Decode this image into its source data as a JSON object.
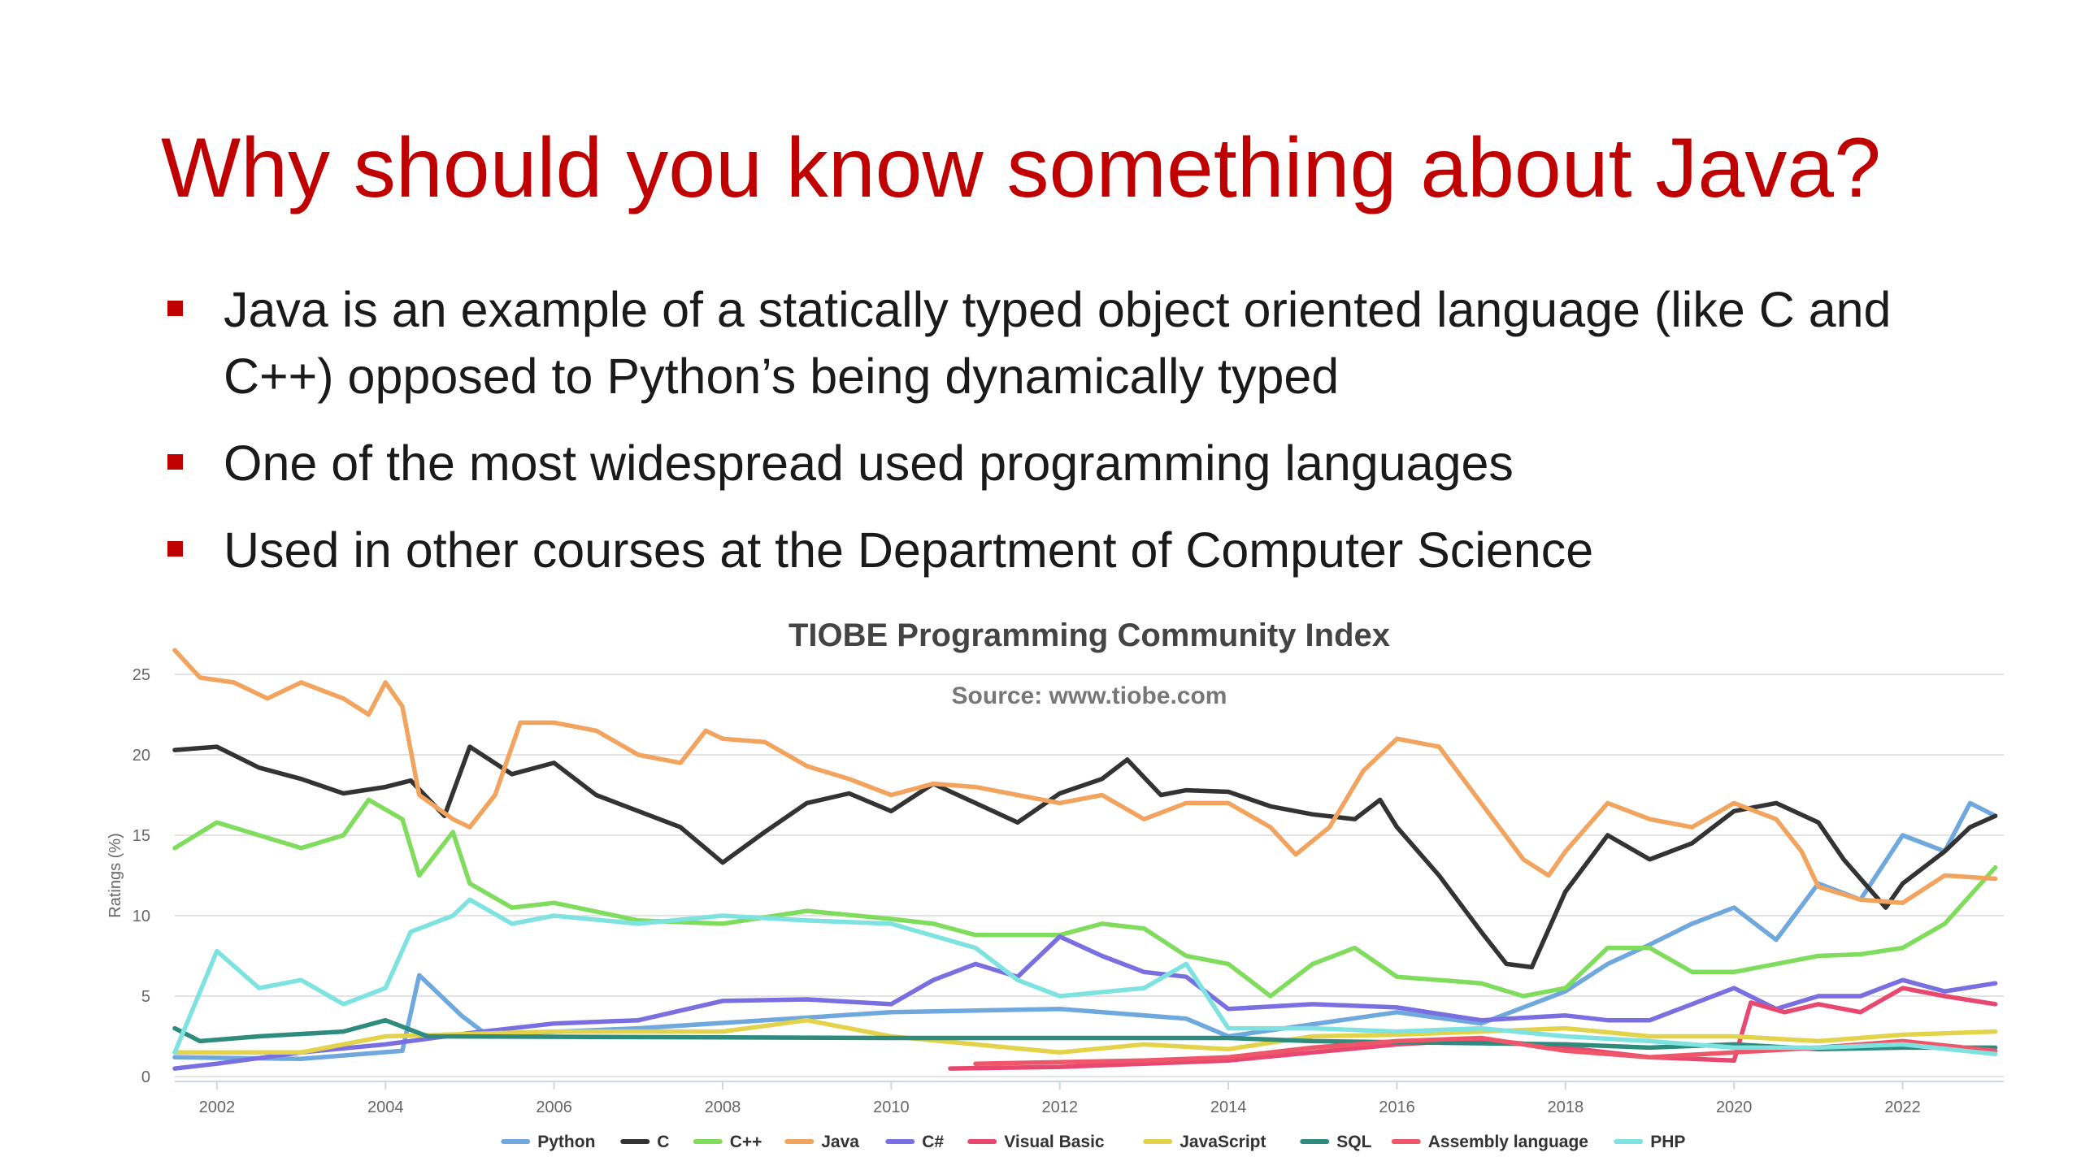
{
  "slide": {
    "title": "Why should you know something about Java?",
    "bullets": [
      "Java is an example of a statically typed object oriented language (like C and C++) opposed to Python’s being dynamically typed",
      "One of the most widespread used programming languages",
      "Used in other courses at the Department of Computer Science"
    ]
  },
  "colors": {
    "title": "#c00000",
    "bullet": "#c00000"
  },
  "chart_data": {
    "type": "line",
    "title": "TIOBE Programming Community Index",
    "subtitle": "Source: www.tiobe.com",
    "ylabel": "Ratings (%)",
    "xlabel": "",
    "xlim": [
      2001.5,
      2023.2
    ],
    "ylim": [
      0,
      25
    ],
    "x_ticks": [
      "2002",
      "2004",
      "2006",
      "2008",
      "2010",
      "2012",
      "2014",
      "2016",
      "2018",
      "2020",
      "2022"
    ],
    "y_ticks": [
      "0",
      "5",
      "10",
      "15",
      "20",
      "25"
    ],
    "grid": "horizontal",
    "legend_position": "bottom",
    "series": [
      {
        "name": "Python",
        "color": "#6fa8dc",
        "points": [
          [
            2001.5,
            1.2
          ],
          [
            2003,
            1.1
          ],
          [
            2004.2,
            1.6
          ],
          [
            2004.4,
            6.3
          ],
          [
            2004.9,
            3.8
          ],
          [
            2005.2,
            2.6
          ],
          [
            2007,
            3.0
          ],
          [
            2010,
            4.0
          ],
          [
            2012,
            4.2
          ],
          [
            2013.5,
            3.6
          ],
          [
            2014,
            2.5
          ],
          [
            2016,
            4.0
          ],
          [
            2017,
            3.3
          ],
          [
            2018,
            5.3
          ],
          [
            2018.5,
            7.0
          ],
          [
            2019,
            8.2
          ],
          [
            2019.5,
            9.5
          ],
          [
            2020,
            10.5
          ],
          [
            2020.5,
            8.5
          ],
          [
            2021,
            12.0
          ],
          [
            2021.5,
            11.0
          ],
          [
            2022,
            15.0
          ],
          [
            2022.5,
            14.0
          ],
          [
            2022.8,
            17.0
          ],
          [
            2023.1,
            16.2
          ]
        ]
      },
      {
        "name": "C",
        "color": "#333333",
        "points": [
          [
            2001.5,
            20.3
          ],
          [
            2002,
            20.5
          ],
          [
            2002.5,
            19.2
          ],
          [
            2003,
            18.5
          ],
          [
            2003.5,
            17.6
          ],
          [
            2004,
            18.0
          ],
          [
            2004.3,
            18.4
          ],
          [
            2004.7,
            16.2
          ],
          [
            2005,
            20.5
          ],
          [
            2005.5,
            18.8
          ],
          [
            2006,
            19.5
          ],
          [
            2006.5,
            17.5
          ],
          [
            2007,
            16.5
          ],
          [
            2007.5,
            15.5
          ],
          [
            2008,
            13.3
          ],
          [
            2008.5,
            15.2
          ],
          [
            2009,
            17.0
          ],
          [
            2009.5,
            17.6
          ],
          [
            2010,
            16.5
          ],
          [
            2010.5,
            18.2
          ],
          [
            2011,
            17.0
          ],
          [
            2011.5,
            15.8
          ],
          [
            2012,
            17.6
          ],
          [
            2012.5,
            18.5
          ],
          [
            2012.8,
            19.7
          ],
          [
            2013.2,
            17.5
          ],
          [
            2013.5,
            17.8
          ],
          [
            2014,
            17.7
          ],
          [
            2014.5,
            16.8
          ],
          [
            2015,
            16.3
          ],
          [
            2015.5,
            16.0
          ],
          [
            2015.8,
            17.2
          ],
          [
            2016,
            15.5
          ],
          [
            2016.5,
            12.5
          ],
          [
            2017,
            9.0
          ],
          [
            2017.3,
            7.0
          ],
          [
            2017.6,
            6.8
          ],
          [
            2018,
            11.5
          ],
          [
            2018.5,
            15.0
          ],
          [
            2019,
            13.5
          ],
          [
            2019.5,
            14.5
          ],
          [
            2020,
            16.5
          ],
          [
            2020.5,
            17.0
          ],
          [
            2021,
            15.8
          ],
          [
            2021.3,
            13.5
          ],
          [
            2021.8,
            10.5
          ],
          [
            2022,
            12.0
          ],
          [
            2022.5,
            14.0
          ],
          [
            2022.8,
            15.5
          ],
          [
            2023.1,
            16.2
          ]
        ]
      },
      {
        "name": "C++",
        "color": "#7fdc5c",
        "points": [
          [
            2001.5,
            14.2
          ],
          [
            2002,
            15.8
          ],
          [
            2002.5,
            15.0
          ],
          [
            2003,
            14.2
          ],
          [
            2003.5,
            15.0
          ],
          [
            2003.8,
            17.2
          ],
          [
            2004.2,
            16.0
          ],
          [
            2004.4,
            12.5
          ],
          [
            2004.8,
            15.2
          ],
          [
            2005,
            12.0
          ],
          [
            2005.5,
            10.5
          ],
          [
            2006,
            10.8
          ],
          [
            2007,
            9.7
          ],
          [
            2008,
            9.5
          ],
          [
            2009,
            10.3
          ],
          [
            2010,
            9.8
          ],
          [
            2010.5,
            9.5
          ],
          [
            2011,
            8.8
          ],
          [
            2012,
            8.8
          ],
          [
            2012.5,
            9.5
          ],
          [
            2013,
            9.2
          ],
          [
            2013.5,
            7.5
          ],
          [
            2014,
            7.0
          ],
          [
            2014.5,
            5.0
          ],
          [
            2015,
            7.0
          ],
          [
            2015.5,
            8.0
          ],
          [
            2016,
            6.2
          ],
          [
            2017,
            5.8
          ],
          [
            2017.5,
            5.0
          ],
          [
            2018,
            5.5
          ],
          [
            2018.5,
            8.0
          ],
          [
            2019,
            8.0
          ],
          [
            2019.5,
            6.5
          ],
          [
            2020,
            6.5
          ],
          [
            2021,
            7.5
          ],
          [
            2021.5,
            7.6
          ],
          [
            2022,
            8.0
          ],
          [
            2022.5,
            9.5
          ],
          [
            2023.1,
            13.0
          ]
        ]
      },
      {
        "name": "Java",
        "color": "#f2a35e",
        "points": [
          [
            2001.5,
            26.5
          ],
          [
            2001.8,
            24.8
          ],
          [
            2002.2,
            24.5
          ],
          [
            2002.6,
            23.5
          ],
          [
            2003,
            24.5
          ],
          [
            2003.5,
            23.5
          ],
          [
            2003.8,
            22.5
          ],
          [
            2004,
            24.5
          ],
          [
            2004.2,
            23.0
          ],
          [
            2004.4,
            17.5
          ],
          [
            2004.8,
            16.0
          ],
          [
            2005,
            15.5
          ],
          [
            2005.3,
            17.5
          ],
          [
            2005.6,
            22.0
          ],
          [
            2006,
            22.0
          ],
          [
            2006.5,
            21.5
          ],
          [
            2007,
            20.0
          ],
          [
            2007.5,
            19.5
          ],
          [
            2007.8,
            21.5
          ],
          [
            2008,
            21.0
          ],
          [
            2008.5,
            20.8
          ],
          [
            2009,
            19.3
          ],
          [
            2009.5,
            18.5
          ],
          [
            2010,
            17.5
          ],
          [
            2010.5,
            18.2
          ],
          [
            2011,
            18.0
          ],
          [
            2011.5,
            17.5
          ],
          [
            2012,
            17.0
          ],
          [
            2012.5,
            17.5
          ],
          [
            2013,
            16.0
          ],
          [
            2013.5,
            17.0
          ],
          [
            2014,
            17.0
          ],
          [
            2014.5,
            15.5
          ],
          [
            2014.8,
            13.8
          ],
          [
            2015.2,
            15.5
          ],
          [
            2015.6,
            19.0
          ],
          [
            2016,
            21.0
          ],
          [
            2016.5,
            20.5
          ],
          [
            2017,
            17.0
          ],
          [
            2017.5,
            13.5
          ],
          [
            2017.8,
            12.5
          ],
          [
            2018,
            14.0
          ],
          [
            2018.5,
            17.0
          ],
          [
            2019,
            16.0
          ],
          [
            2019.5,
            15.5
          ],
          [
            2020,
            17.0
          ],
          [
            2020.5,
            16.0
          ],
          [
            2020.8,
            14.0
          ],
          [
            2021,
            11.8
          ],
          [
            2021.5,
            11.0
          ],
          [
            2022,
            10.8
          ],
          [
            2022.5,
            12.5
          ],
          [
            2023.1,
            12.3
          ]
        ]
      },
      {
        "name": "C#",
        "color": "#7a6fe0",
        "points": [
          [
            2001.5,
            0.5
          ],
          [
            2002,
            0.8
          ],
          [
            2003,
            1.5
          ],
          [
            2004,
            2.0
          ],
          [
            2005,
            2.7
          ],
          [
            2006,
            3.3
          ],
          [
            2007,
            3.5
          ],
          [
            2008,
            4.7
          ],
          [
            2009,
            4.8
          ],
          [
            2010,
            4.5
          ],
          [
            2010.5,
            6.0
          ],
          [
            2011,
            7.0
          ],
          [
            2011.5,
            6.2
          ],
          [
            2012,
            8.7
          ],
          [
            2012.5,
            7.5
          ],
          [
            2013,
            6.5
          ],
          [
            2013.5,
            6.2
          ],
          [
            2014,
            4.2
          ],
          [
            2015,
            4.5
          ],
          [
            2016,
            4.3
          ],
          [
            2017,
            3.5
          ],
          [
            2018,
            3.8
          ],
          [
            2018.5,
            3.5
          ],
          [
            2019,
            3.5
          ],
          [
            2019.5,
            4.5
          ],
          [
            2020,
            5.5
          ],
          [
            2020.5,
            4.2
          ],
          [
            2021,
            5.0
          ],
          [
            2021.5,
            5.0
          ],
          [
            2022,
            6.0
          ],
          [
            2022.5,
            5.3
          ],
          [
            2023.1,
            5.8
          ]
        ]
      },
      {
        "name": "Visual Basic",
        "color": "#e8486f",
        "points": [
          [
            2010.7,
            0.5
          ],
          [
            2012,
            0.6
          ],
          [
            2013,
            0.8
          ],
          [
            2014,
            1.0
          ],
          [
            2015,
            1.5
          ],
          [
            2016,
            2.0
          ],
          [
            2017,
            2.3
          ],
          [
            2018,
            1.8
          ],
          [
            2019,
            1.2
          ],
          [
            2020,
            1.0
          ],
          [
            2020.2,
            4.6
          ],
          [
            2020.6,
            4.0
          ],
          [
            2021,
            4.5
          ],
          [
            2021.5,
            4.0
          ],
          [
            2022,
            5.5
          ],
          [
            2022.5,
            5.0
          ],
          [
            2023.1,
            4.5
          ]
        ]
      },
      {
        "name": "JavaScript",
        "color": "#e3d34a",
        "points": [
          [
            2001.5,
            1.5
          ],
          [
            2003,
            1.5
          ],
          [
            2004,
            2.5
          ],
          [
            2006,
            2.8
          ],
          [
            2008,
            2.8
          ],
          [
            2009,
            3.5
          ],
          [
            2010,
            2.5
          ],
          [
            2011,
            2.0
          ],
          [
            2012,
            1.5
          ],
          [
            2013,
            2.0
          ],
          [
            2014,
            1.7
          ],
          [
            2015,
            2.5
          ],
          [
            2016,
            2.6
          ],
          [
            2017,
            2.8
          ],
          [
            2018,
            3.0
          ],
          [
            2019,
            2.5
          ],
          [
            2020,
            2.5
          ],
          [
            2021,
            2.2
          ],
          [
            2022,
            2.6
          ],
          [
            2023.1,
            2.8
          ]
        ]
      },
      {
        "name": "SQL",
        "color": "#2e8b7e",
        "points": [
          [
            2001.5,
            3.0
          ],
          [
            2001.8,
            2.2
          ],
          [
            2002.5,
            2.5
          ],
          [
            2003.5,
            2.8
          ],
          [
            2004,
            3.5
          ],
          [
            2004.5,
            2.5
          ],
          [
            2010,
            2.4
          ],
          [
            2014,
            2.4
          ],
          [
            2015,
            2.2
          ],
          [
            2018,
            2.0
          ],
          [
            2019,
            1.8
          ],
          [
            2020,
            2.0
          ],
          [
            2021,
            1.7
          ],
          [
            2022,
            1.8
          ],
          [
            2023.1,
            1.8
          ]
        ]
      },
      {
        "name": "Assembly language",
        "color": "#f0566a",
        "points": [
          [
            2011,
            0.8
          ],
          [
            2012,
            0.9
          ],
          [
            2013,
            1.0
          ],
          [
            2014,
            1.2
          ],
          [
            2015,
            1.8
          ],
          [
            2016,
            2.2
          ],
          [
            2017,
            2.4
          ],
          [
            2018,
            1.6
          ],
          [
            2019,
            1.2
          ],
          [
            2020,
            1.5
          ],
          [
            2021,
            1.8
          ],
          [
            2022,
            2.2
          ],
          [
            2023.1,
            1.6
          ]
        ]
      },
      {
        "name": "PHP",
        "color": "#7ee3e0",
        "points": [
          [
            2001.5,
            1.5
          ],
          [
            2002,
            7.8
          ],
          [
            2002.5,
            5.5
          ],
          [
            2003,
            6.0
          ],
          [
            2003.5,
            4.5
          ],
          [
            2004,
            5.5
          ],
          [
            2004.3,
            9.0
          ],
          [
            2004.8,
            10.0
          ],
          [
            2005,
            11.0
          ],
          [
            2005.5,
            9.5
          ],
          [
            2006,
            10.0
          ],
          [
            2007,
            9.5
          ],
          [
            2008,
            10.0
          ],
          [
            2009,
            9.7
          ],
          [
            2010,
            9.5
          ],
          [
            2011,
            8.0
          ],
          [
            2011.5,
            6.0
          ],
          [
            2012,
            5.0
          ],
          [
            2013,
            5.5
          ],
          [
            2013.5,
            7.0
          ],
          [
            2014,
            3.0
          ],
          [
            2015,
            3.0
          ],
          [
            2016,
            2.8
          ],
          [
            2017,
            3.0
          ],
          [
            2018,
            2.5
          ],
          [
            2019,
            2.2
          ],
          [
            2020,
            1.8
          ],
          [
            2021,
            1.8
          ],
          [
            2022,
            2.0
          ],
          [
            2023.1,
            1.4
          ]
        ]
      }
    ]
  }
}
